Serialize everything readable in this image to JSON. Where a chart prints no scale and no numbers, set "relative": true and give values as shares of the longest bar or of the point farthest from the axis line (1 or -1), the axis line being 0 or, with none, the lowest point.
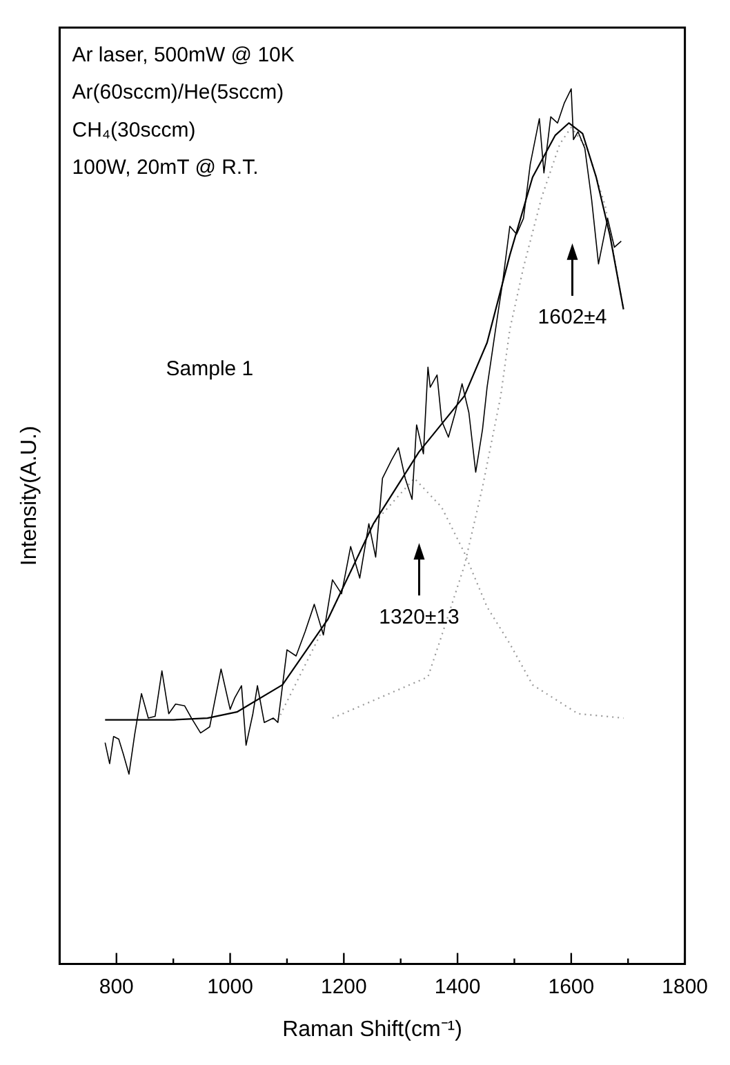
{
  "chart_data": {
    "type": "line",
    "xlabel": "Raman Shift(cm⁻¹)",
    "ylabel": "Intensity(A.U.)",
    "relative": true,
    "xlim": [
      700,
      1800
    ],
    "xticks": [
      800,
      {
        "value": 900,
        "label": null
      },
      1000,
      {
        "value": 1100,
        "label": null
      },
      1200,
      {
        "value": 1300,
        "label": null
      },
      1400,
      {
        "value": 1500,
        "label": null
      },
      1600,
      {
        "value": 1700,
        "label": null
      },
      1800
    ],
    "grid": false,
    "legend": false,
    "marker": "none",
    "series": [
      {
        "color": "#000000",
        "line_style": "solid",
        "x": [
          780,
          788,
          795,
          804,
          812,
          822,
          832,
          844,
          856,
          868,
          880,
          892,
          904,
          920,
          932,
          948,
          964,
          984,
          1000,
          1008,
          1020,
          1028,
          1040,
          1048,
          1060,
          1076,
          1084,
          1100,
          1116,
          1132,
          1148,
          1164,
          1180,
          1196,
          1212,
          1228,
          1244,
          1256,
          1268,
          1284,
          1296,
          1308,
          1320,
          1328,
          1340,
          1348,
          1352,
          1364,
          1372,
          1384,
          1396,
          1408,
          1420,
          1432,
          1444,
          1452,
          1468,
          1480,
          1492,
          1504,
          1516,
          1528,
          1544,
          1552,
          1564,
          1576,
          1588,
          1600,
          1604,
          1612,
          1624,
          1636,
          1648,
          1664,
          1676,
          1688
        ],
        "values": [
          0.253,
          0.229,
          0.26,
          0.257,
          0.24,
          0.217,
          0.262,
          0.309,
          0.281,
          0.283,
          0.335,
          0.286,
          0.297,
          0.295,
          0.281,
          0.264,
          0.271,
          0.337,
          0.291,
          0.304,
          0.318,
          0.25,
          0.286,
          0.318,
          0.276,
          0.281,
          0.276,
          0.359,
          0.352,
          0.38,
          0.411,
          0.376,
          0.439,
          0.423,
          0.477,
          0.441,
          0.503,
          0.465,
          0.555,
          0.576,
          0.59,
          0.555,
          0.531,
          0.616,
          0.583,
          0.682,
          0.659,
          0.673,
          0.621,
          0.602,
          0.63,
          0.663,
          0.63,
          0.562,
          0.611,
          0.659,
          0.73,
          0.782,
          0.843,
          0.834,
          0.852,
          0.914,
          0.966,
          0.904,
          0.968,
          0.961,
          0.984,
          1.0,
          0.942,
          0.951,
          0.932,
          0.873,
          0.8,
          0.852,
          0.819,
          0.826
        ]
      },
      {
        "color": "#000000",
        "line_style": "solid",
        "x": [
          780,
          900,
          960,
          1012,
          1092,
          1172,
          1252,
          1332,
          1412,
          1452,
          1492,
          1532,
          1572,
          1596,
          1620,
          1644,
          1668,
          1692
        ],
        "values": [
          0.279,
          0.279,
          0.281,
          0.288,
          0.319,
          0.394,
          0.503,
          0.585,
          0.649,
          0.71,
          0.81,
          0.899,
          0.947,
          0.961,
          0.949,
          0.899,
          0.833,
          0.748
        ]
      },
      {
        "color": "#999999",
        "line_style": "dotted",
        "x": [
          1084,
          1100,
          1172,
          1252,
          1324,
          1372,
          1412,
          1452,
          1492,
          1532,
          1612,
          1692
        ],
        "values": [
          0.279,
          0.3,
          0.394,
          0.503,
          0.555,
          0.522,
          0.47,
          0.408,
          0.366,
          0.319,
          0.286,
          0.281
        ]
      },
      {
        "color": "#999999",
        "line_style": "dotted",
        "x": [
          1180,
          1348,
          1372,
          1412,
          1444,
          1476,
          1492,
          1516,
          1548,
          1580,
          1600,
          1628,
          1660,
          1692
        ],
        "values": [
          0.281,
          0.328,
          0.375,
          0.455,
          0.545,
          0.649,
          0.725,
          0.796,
          0.876,
          0.937,
          0.956,
          0.932,
          0.866,
          0.748
        ]
      }
    ],
    "annotations": [
      "Ar laser, 500mW @ 10K",
      "Ar(60sccm)/He(5sccm)",
      "CH₄(30sccm)",
      "100W, 20mT @ R.T.",
      "Sample 1",
      "1602±4",
      "1320±13"
    ]
  }
}
